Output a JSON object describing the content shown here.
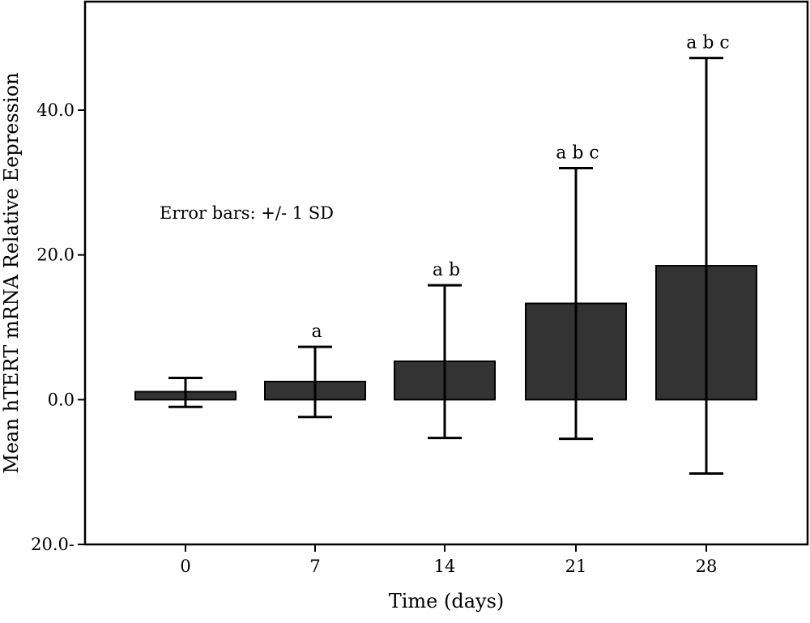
{
  "chart_data": {
    "type": "bar",
    "title": "",
    "xlabel": "Time (days)",
    "ylabel": "Mean hTERT mRNA Relative Eepression",
    "categories": [
      "0",
      "7",
      "14",
      "21",
      "28"
    ],
    "values": [
      1.1,
      2.5,
      5.3,
      13.3,
      18.5
    ],
    "error_upper": [
      3.0,
      7.3,
      15.8,
      32.0,
      47.2
    ],
    "error_lower": [
      -1.0,
      -2.4,
      -5.3,
      -5.4,
      -10.2
    ],
    "significance": [
      "",
      "a",
      "a b",
      "a b c",
      "a b c"
    ],
    "ylim": [
      -20,
      55
    ],
    "yticks": [
      -20,
      0,
      20,
      40
    ],
    "ytick_labels": [
      "20.0-",
      "0.0",
      "20.0",
      "40.0"
    ],
    "annotation": "Error bars: +/- 1 SD",
    "bar_color": "#333333",
    "grid": false
  }
}
